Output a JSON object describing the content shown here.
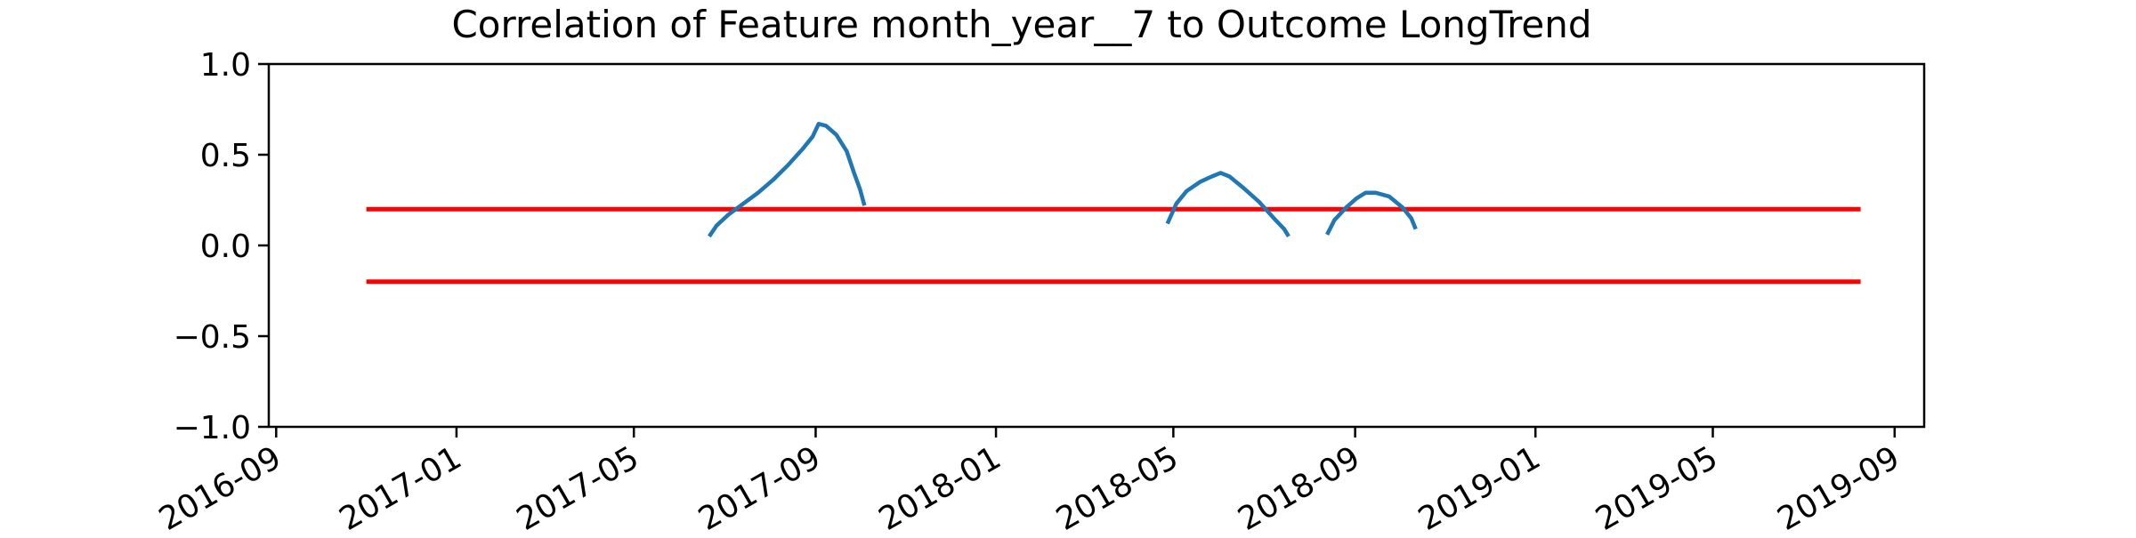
{
  "chart_data": {
    "type": "line",
    "title": "Correlation of Feature month_year__7 to Outcome LongTrend",
    "xlabel": "",
    "ylabel": "",
    "x_axis": {
      "type": "date",
      "range": [
        "2016-08-27",
        "2019-09-21"
      ],
      "ticks": [
        "2016-09",
        "2017-01",
        "2017-05",
        "2017-09",
        "2018-01",
        "2018-05",
        "2018-09",
        "2019-01",
        "2019-05",
        "2019-09"
      ]
    },
    "y_axis": {
      "range": [
        -1.0,
        1.0
      ],
      "ticks": [
        "1.0",
        "0.5",
        "0.0",
        "−0.5",
        "−1.0"
      ]
    },
    "grid": false,
    "colors": {
      "series": "#1f77b4",
      "threshold": "#ff0000"
    },
    "thresholds": [
      {
        "y": 0.2,
        "x": [
          "2016-11-01",
          "2019-08-09"
        ]
      },
      {
        "y": -0.2,
        "x": [
          "2016-11-01",
          "2019-08-09"
        ]
      }
    ],
    "series": [
      {
        "segments": [
          [
            [
              "2017-06-21",
              0.05
            ],
            [
              "2017-06-26",
              0.11
            ],
            [
              "2017-07-04",
              0.17
            ],
            [
              "2017-07-14",
              0.23
            ],
            [
              "2017-07-24",
              0.29
            ],
            [
              "2017-08-03",
              0.36
            ],
            [
              "2017-08-13",
              0.44
            ],
            [
              "2017-08-23",
              0.53
            ],
            [
              "2017-08-30",
              0.6
            ],
            [
              "2017-09-03",
              0.67
            ],
            [
              "2017-09-08",
              0.66
            ],
            [
              "2017-09-15",
              0.61
            ],
            [
              "2017-09-22",
              0.52
            ],
            [
              "2017-09-27",
              0.4
            ],
            [
              "2017-10-01",
              0.31
            ],
            [
              "2017-10-04",
              0.22
            ]
          ],
          [
            [
              "2018-04-27",
              0.12
            ],
            [
              "2018-05-03",
              0.23
            ],
            [
              "2018-05-10",
              0.3
            ],
            [
              "2018-05-19",
              0.35
            ],
            [
              "2018-05-27",
              0.38
            ],
            [
              "2018-06-02",
              0.4
            ],
            [
              "2018-06-08",
              0.38
            ],
            [
              "2018-06-17",
              0.32
            ],
            [
              "2018-06-28",
              0.24
            ],
            [
              "2018-07-08",
              0.15
            ],
            [
              "2018-07-15",
              0.09
            ],
            [
              "2018-07-18",
              0.05
            ]
          ],
          [
            [
              "2018-08-13",
              0.06
            ],
            [
              "2018-08-18",
              0.14
            ],
            [
              "2018-08-26",
              0.21
            ],
            [
              "2018-09-02",
              0.26
            ],
            [
              "2018-09-08",
              0.29
            ],
            [
              "2018-09-15",
              0.29
            ],
            [
              "2018-09-24",
              0.27
            ],
            [
              "2018-10-03",
              0.21
            ],
            [
              "2018-10-09",
              0.15
            ],
            [
              "2018-10-12",
              0.09
            ]
          ]
        ]
      }
    ]
  }
}
